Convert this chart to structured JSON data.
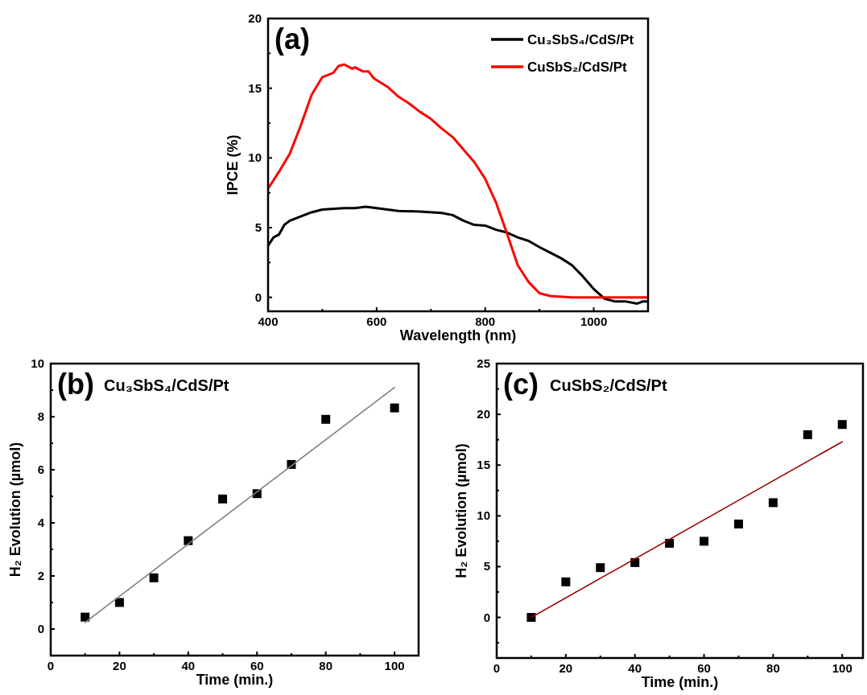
{
  "chart_data": [
    {
      "type": "line",
      "annotations": [
        "(a)"
      ],
      "xlabel": "Wavelength (nm)",
      "ylabel": "IPCE (%)",
      "xlim": [
        400,
        1100
      ],
      "ylim": [
        -1,
        20
      ],
      "xticks": [
        400,
        {
          "value": 500,
          "label": null
        },
        600,
        {
          "value": 700,
          "label": null
        },
        800,
        {
          "value": 900,
          "label": null
        },
        1000
      ],
      "yticks": [
        0,
        {
          "value": 2.5,
          "label": null
        },
        5,
        {
          "value": 7.5,
          "label": null
        },
        10,
        {
          "value": 12.5,
          "label": null
        },
        15,
        {
          "value": 17.5,
          "label": null
        },
        20
      ],
      "legend": "top right",
      "line_style": "solid",
      "series": [
        {
          "name": "Cu₃SbS₄/CdS/Pt",
          "color": "#000000",
          "x": [
            400,
            410,
            420,
            430,
            440,
            460,
            480,
            500,
            540,
            560,
            580,
            600,
            640,
            680,
            720,
            740,
            760,
            780,
            800,
            820,
            840,
            860,
            880,
            900,
            920,
            940,
            960,
            980,
            1000,
            1020,
            1040,
            1060,
            1080,
            1090,
            1100
          ],
          "values": [
            3.7,
            4.3,
            4.5,
            5.2,
            5.5,
            5.8,
            6.1,
            6.3,
            6.4,
            6.4,
            6.5,
            6.4,
            6.2,
            6.15,
            6.05,
            5.9,
            5.5,
            5.2,
            5.15,
            4.85,
            4.65,
            4.3,
            4.05,
            3.6,
            3.2,
            2.8,
            2.3,
            1.5,
            0.6,
            -0.1,
            -0.3,
            -0.3,
            -0.45,
            -0.3,
            -0.3
          ]
        },
        {
          "name": "CuSbS₂/CdS/Pt",
          "color": "#ff0000",
          "x": [
            400,
            420,
            440,
            460,
            480,
            500,
            520,
            530,
            540,
            555,
            560,
            575,
            585,
            595,
            620,
            640,
            660,
            680,
            700,
            720,
            740,
            760,
            780,
            800,
            820,
            840,
            860,
            880,
            900,
            920,
            960,
            1100
          ],
          "values": [
            7.8,
            9.0,
            10.3,
            12.3,
            14.5,
            15.8,
            16.1,
            16.6,
            16.7,
            16.4,
            16.5,
            16.2,
            16.2,
            15.7,
            15.1,
            14.4,
            13.9,
            13.3,
            12.8,
            12.1,
            11.5,
            10.6,
            9.7,
            8.5,
            6.8,
            4.6,
            2.3,
            1.1,
            0.3,
            0.1,
            0,
            0
          ]
        }
      ]
    },
    {
      "type": "scatter",
      "annotations": [
        "(b)",
        "Cu₃SbS₄/CdS/Pt"
      ],
      "xlabel": "Time (min.)",
      "ylabel": "H₂ Evolution (µmol)",
      "xlim": [
        0,
        107
      ],
      "ylim": [
        -1,
        10
      ],
      "xticks": [
        0,
        {
          "value": 10,
          "label": null
        },
        20,
        {
          "value": 30,
          "label": null
        },
        40,
        {
          "value": 50,
          "label": null
        },
        60,
        {
          "value": 70,
          "label": null
        },
        80,
        {
          "value": 90,
          "label": null
        },
        100
      ],
      "yticks": [
        0,
        {
          "value": 1,
          "label": null
        },
        2,
        {
          "value": 3,
          "label": null
        },
        4,
        {
          "value": 5,
          "label": null
        },
        6,
        {
          "value": 7,
          "label": null
        },
        8,
        {
          "value": 9,
          "label": null
        },
        10
      ],
      "marker": "square",
      "series": [
        {
          "color": "#000000",
          "x": [
            10,
            20,
            30,
            40,
            50,
            60,
            70,
            80,
            100
          ],
          "values": [
            0.45,
            1.0,
            1.93,
            3.33,
            4.9,
            5.1,
            6.2,
            7.9,
            8.33
          ]
        },
        {
          "type": "line",
          "marker": "none",
          "color": "#808080",
          "x": [
            10,
            100
          ],
          "values": [
            0.25,
            9.1
          ]
        }
      ]
    },
    {
      "type": "scatter",
      "annotations": [
        "(c)",
        "CuSbS₂/CdS/Pt"
      ],
      "xlabel": "Time (min.)",
      "ylabel": "H₂ Evolution (µmol)",
      "xlim": [
        0,
        106
      ],
      "ylim": [
        -4,
        25
      ],
      "xticks": [
        0,
        {
          "value": 10,
          "label": null
        },
        20,
        {
          "value": 30,
          "label": null
        },
        40,
        {
          "value": 50,
          "label": null
        },
        60,
        {
          "value": 70,
          "label": null
        },
        80,
        {
          "value": 90,
          "label": null
        },
        100
      ],
      "yticks": [
        {
          "value": -2.5,
          "label": null
        },
        0,
        {
          "value": 2.5,
          "label": null
        },
        5,
        {
          "value": 7.5,
          "label": null
        },
        10,
        {
          "value": 12.5,
          "label": null
        },
        15,
        {
          "value": 17.5,
          "label": null
        },
        20,
        {
          "value": 22.5,
          "label": null
        },
        25
      ],
      "marker": "square",
      "series": [
        {
          "color": "#000000",
          "x": [
            10,
            20,
            30,
            40,
            50,
            60,
            70,
            80,
            90,
            100
          ],
          "values": [
            0,
            3.5,
            4.9,
            5.4,
            7.3,
            7.5,
            9.2,
            11.3,
            18.0,
            19.0
          ]
        },
        {
          "type": "line",
          "marker": "none",
          "color": "#990000",
          "x": [
            10,
            100
          ],
          "values": [
            0,
            17.3
          ]
        }
      ]
    }
  ]
}
